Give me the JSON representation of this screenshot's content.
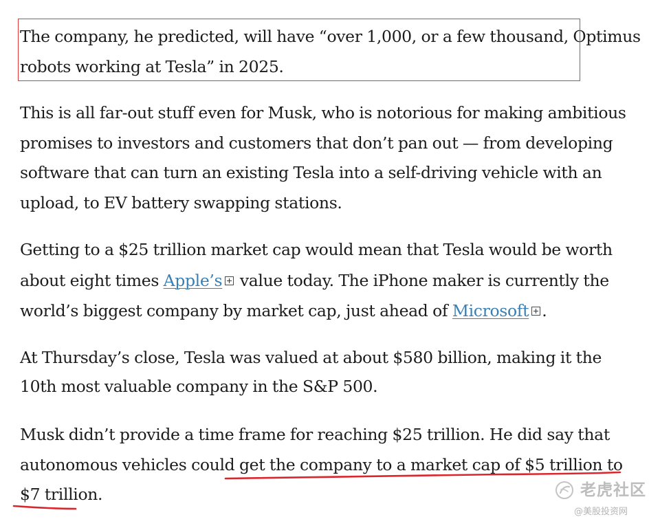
{
  "article": {
    "p1": "The company, he predicted, will have “over 1,000, or a few thousand, Optimus robots working at Tesla” in 2025.",
    "p2": "This is all far-out stuff even for Musk, who is notorious for making ambitious promises to investors and customers that don’t pan out — from developing software that can turn an existing Tesla into a self-driving vehicle with an upload, to EV battery swapping stations.",
    "p3": {
      "before_link1": "Getting to a $25 trillion market cap would mean that Tesla would be worth about eight times ",
      "link1": "Apple’s",
      "between_links": " value today. The iPhone maker is currently the world’s biggest company by market cap, just ahead of ",
      "link2": "Microsoft",
      "after_link2": "."
    },
    "p4": "At Thursday’s close, Tesla was valued at about $580 billion, making it the 10th most valuable company in the S&P 500.",
    "p5": "Musk didn’t provide a time frame for reaching $25 trillion. He did say that autonomous vehicles could get the company to a market cap of $5 trillion to $7 trillion."
  },
  "annotations": {
    "highlight_color": "#e0393a",
    "underline_color": "#d9262c"
  },
  "watermark": {
    "brand": "老虎社区",
    "handle": "@美股投资网",
    "icon": "tiger-logo-icon"
  },
  "colors": {
    "text": "#1c1c1c",
    "link": "#3a7fb4"
  }
}
